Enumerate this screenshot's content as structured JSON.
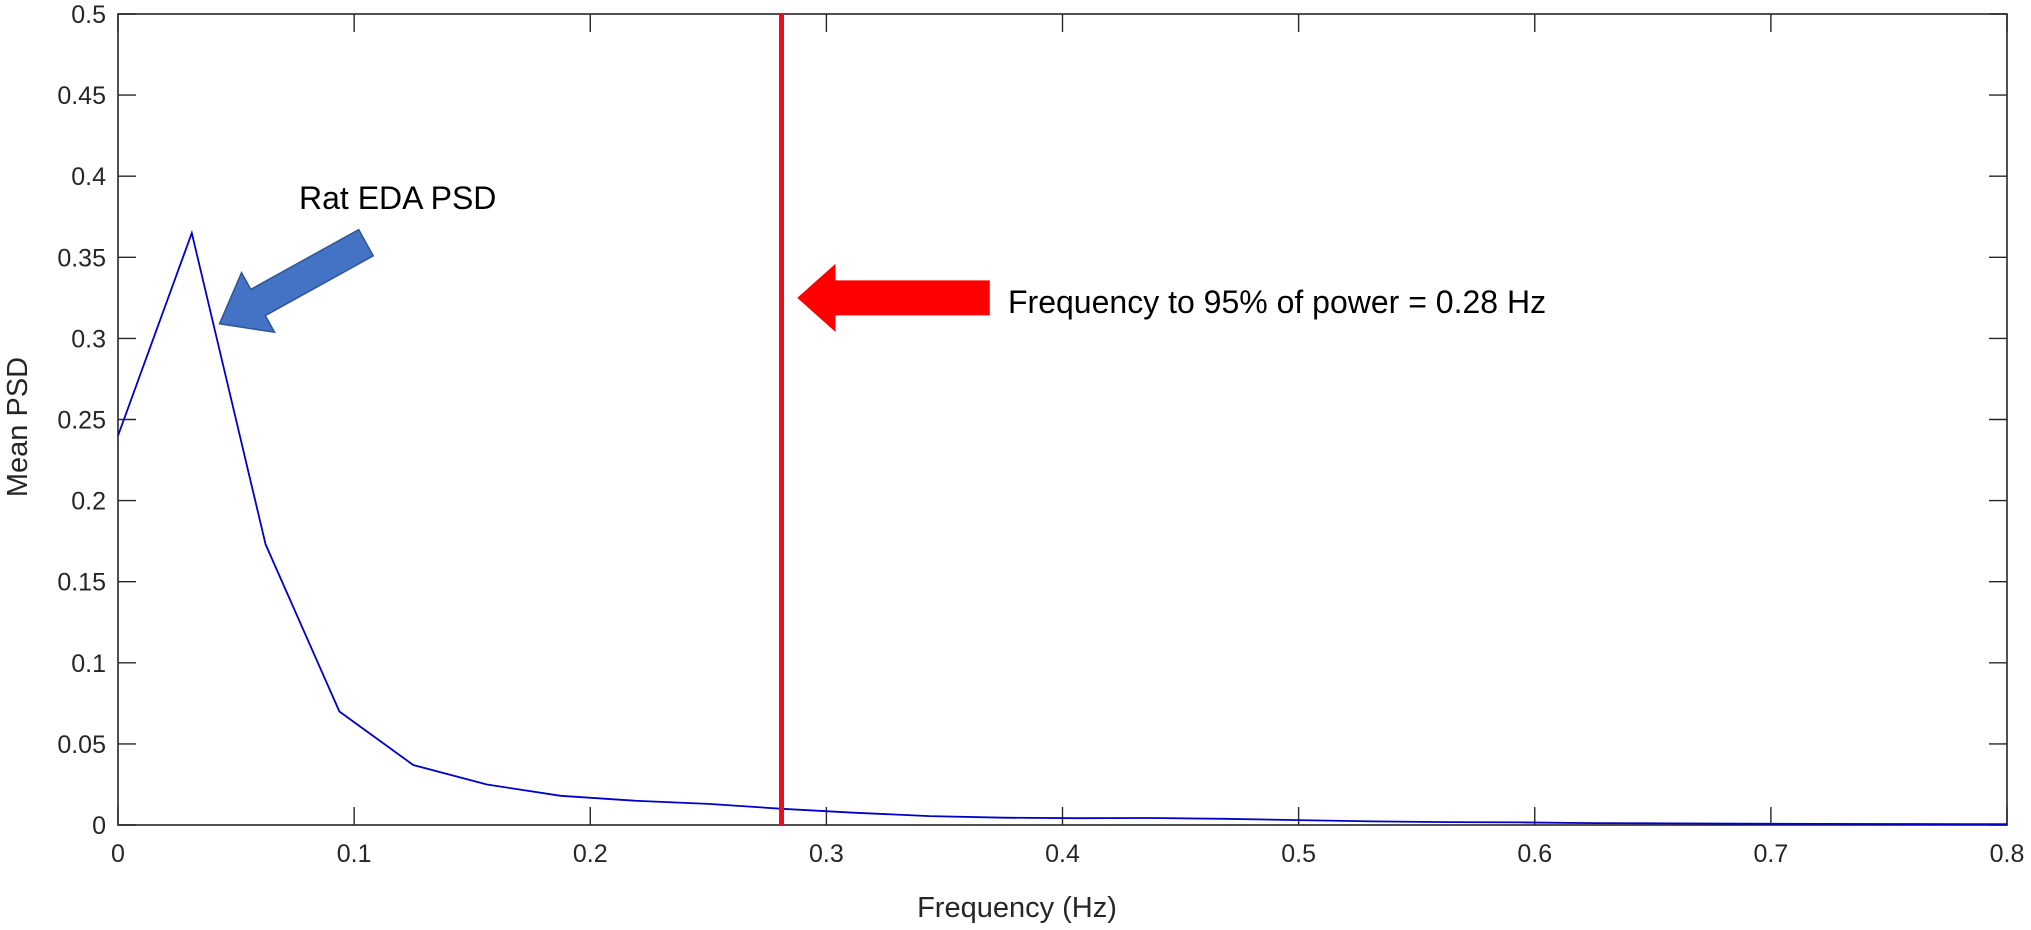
{
  "chart_data": {
    "type": "line",
    "title": "",
    "xlabel": "Frequency (Hz)",
    "ylabel": "Mean PSD",
    "xlim": [
      0,
      0.8
    ],
    "ylim": [
      0,
      0.5
    ],
    "xticks": [
      0,
      0.1,
      0.2,
      0.3,
      0.4,
      0.5,
      0.6,
      0.7,
      0.8
    ],
    "xtick_labels": [
      "0",
      "0.1",
      "0.2",
      "0.3",
      "0.4",
      "0.5",
      "0.6",
      "0.7",
      "0.8"
    ],
    "yticks": [
      0,
      0.05,
      0.1,
      0.15,
      0.2,
      0.25,
      0.3,
      0.35,
      0.4,
      0.45,
      0.5
    ],
    "ytick_labels": [
      "0",
      "0.05",
      "0.1",
      "0.15",
      "0.2",
      "0.25",
      "0.3",
      "0.35",
      "0.4",
      "0.45",
      "0.5"
    ],
    "grid": false,
    "box": true,
    "series": [
      {
        "color": "#0000c8",
        "x": [
          0,
          0.03125,
          0.0625,
          0.09375,
          0.125,
          0.15625,
          0.1875,
          0.21875,
          0.25,
          0.28125,
          0.3125,
          0.34375,
          0.375,
          0.40625,
          0.4375,
          0.46875,
          0.5,
          0.53125,
          0.5625,
          0.59375,
          0.625,
          0.65625,
          0.6875,
          0.71875,
          0.75,
          0.78125,
          0.8
        ],
        "y": [
          0.24,
          0.365,
          0.173,
          0.07,
          0.037,
          0.025,
          0.018,
          0.015,
          0.013,
          0.01,
          0.0075,
          0.0055,
          0.0045,
          0.0042,
          0.0043,
          0.0038,
          0.003,
          0.0022,
          0.0018,
          0.0016,
          0.0012,
          0.001,
          0.0008,
          0.0007,
          0.0006,
          0.0005,
          0.0005
        ]
      }
    ],
    "vline": {
      "x": 0.281,
      "color": "#e8101a"
    },
    "annotations": [
      {
        "text": "Rat EDA PSD",
        "arrow_color": "#4472c4",
        "arrow_target": [
          0.043,
          0.309
        ],
        "arrow_tail": [
          0.105,
          0.359
        ]
      },
      {
        "text": "Frequency to 95% of power = 0.28 Hz",
        "arrow_color": "#ff0000",
        "arrow_target": [
          0.288,
          0.325
        ],
        "arrow_tail": [
          0.369,
          0.325
        ]
      }
    ]
  }
}
